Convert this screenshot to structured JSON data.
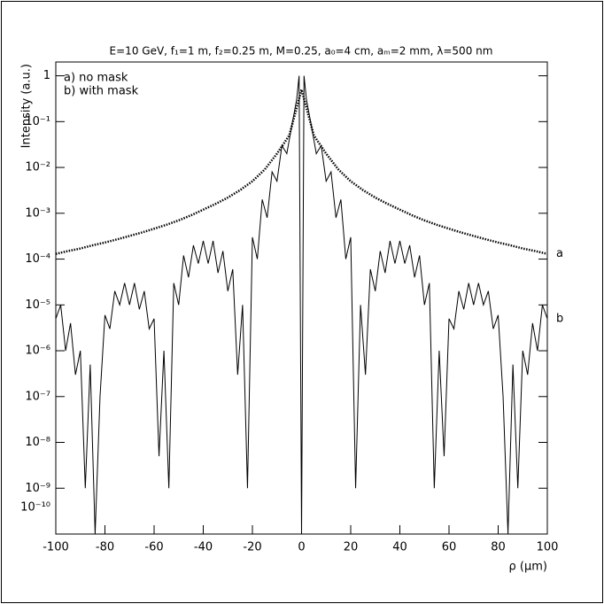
{
  "chart_data": {
    "type": "line",
    "title": "E=10 GeV, f₁=1 m, f₂=0.25 m, M=0.25, a₀=4 cm, aₘ=2 mm, λ=500 nm",
    "x_label": "ρ (μm)",
    "y_label": "Intensity (a.u.)",
    "y_scale": "log",
    "xlim": [
      -100,
      100
    ],
    "xticks": [
      -100,
      -80,
      -60,
      -40,
      -20,
      0,
      20,
      40,
      60,
      80,
      100
    ],
    "ylim": [
      1e-10,
      2
    ],
    "yticks": [
      1,
      {
        "value": 0.1,
        "label": "10⁻¹"
      },
      {
        "value": 0.01,
        "label": "10⁻²"
      },
      {
        "value": 0.001,
        "label": "10⁻³"
      },
      {
        "value": 0.0001,
        "label": "10⁻⁴"
      },
      {
        "value": 1e-05,
        "label": "10⁻⁵"
      },
      {
        "value": 1e-06,
        "label": "10⁻⁶"
      },
      {
        "value": 1e-07,
        "label": "10⁻⁷"
      },
      {
        "value": 1e-08,
        "label": "10⁻⁸"
      },
      {
        "value": 1e-09,
        "label": "10⁻⁹"
      },
      {
        "value": 1e-10,
        "label": "10⁻¹⁰"
      }
    ],
    "series": [
      {
        "name": "a) no mask",
        "label": "a",
        "color": "#000000",
        "style": "dotted",
        "x": [
          -100,
          -95,
          -90,
          -85,
          -80,
          -75,
          -70,
          -65,
          -60,
          -55,
          -50,
          -45,
          -40,
          -35,
          -30,
          -25,
          -20,
          -15,
          -10,
          -5,
          0,
          5,
          10,
          15,
          20,
          25,
          30,
          35,
          40,
          45,
          50,
          55,
          60,
          65,
          70,
          75,
          80,
          85,
          90,
          95,
          100
        ],
        "values": [
          0.00013,
          0.00015,
          0.00017,
          0.0002,
          0.00023,
          0.00027,
          0.00032,
          0.00038,
          0.00046,
          0.00056,
          0.0007,
          0.0009,
          0.0012,
          0.0016,
          0.0022,
          0.0032,
          0.005,
          0.009,
          0.02,
          0.05,
          0.5,
          0.05,
          0.02,
          0.009,
          0.005,
          0.0032,
          0.0022,
          0.0016,
          0.0012,
          0.0009,
          0.0007,
          0.00056,
          0.00046,
          0.00038,
          0.00032,
          0.00027,
          0.00023,
          0.0002,
          0.00017,
          0.00015,
          0.00013
        ]
      },
      {
        "name": "b) with mask",
        "label": "b",
        "color": "#000000",
        "style": "solid",
        "x": [
          -100,
          -98,
          -96,
          -94,
          -92,
          -90,
          -88,
          -86,
          -84,
          -82,
          -80,
          -78,
          -76,
          -74,
          -72,
          -70,
          -68,
          -66,
          -64,
          -62,
          -60,
          -58,
          -56,
          -54,
          -52,
          -50,
          -48,
          -46,
          -44,
          -42,
          -40,
          -38,
          -36,
          -34,
          -32,
          -30,
          -28,
          -26,
          -24,
          -22,
          -20,
          -18,
          -16,
          -14,
          -12,
          -10,
          -8,
          -6,
          -4,
          -2,
          -1,
          0,
          1,
          2,
          4,
          6,
          8,
          10,
          12,
          14,
          16,
          18,
          20,
          22,
          24,
          26,
          28,
          30,
          32,
          34,
          36,
          38,
          40,
          42,
          44,
          46,
          48,
          50,
          52,
          54,
          56,
          58,
          60,
          62,
          64,
          66,
          68,
          70,
          72,
          74,
          76,
          78,
          80,
          82,
          84,
          86,
          88,
          90,
          92,
          94,
          96,
          98,
          100
        ],
        "values": [
          5e-06,
          1e-05,
          1e-06,
          4e-06,
          3e-07,
          1e-06,
          1e-09,
          5e-07,
          1e-10,
          1e-07,
          6e-06,
          3e-06,
          2e-05,
          1e-05,
          3e-05,
          1e-05,
          3e-05,
          8e-06,
          2e-05,
          3e-06,
          5e-06,
          5e-09,
          1e-06,
          1e-09,
          3e-05,
          1e-05,
          0.00012,
          4e-05,
          0.0002,
          8e-05,
          0.00025,
          8e-05,
          0.00025,
          5e-05,
          0.00015,
          2e-05,
          6e-05,
          3e-07,
          1e-05,
          1e-09,
          0.0003,
          0.0001,
          0.002,
          0.0008,
          0.008,
          0.005,
          0.03,
          0.02,
          0.08,
          0.3,
          1,
          1e-10,
          1,
          0.3,
          0.08,
          0.02,
          0.03,
          0.005,
          0.008,
          0.0008,
          0.002,
          0.0001,
          0.0003,
          1e-09,
          1e-05,
          3e-07,
          6e-05,
          2e-05,
          0.00015,
          5e-05,
          0.00025,
          8e-05,
          0.00025,
          8e-05,
          0.0002,
          4e-05,
          0.00012,
          1e-05,
          3e-05,
          1e-09,
          1e-06,
          5e-09,
          5e-06,
          3e-06,
          2e-05,
          8e-06,
          3e-05,
          1e-05,
          3e-05,
          1e-05,
          2e-05,
          3e-06,
          6e-06,
          1e-07,
          1e-10,
          5e-07,
          1e-09,
          1e-06,
          3e-07,
          4e-06,
          1e-06,
          1e-05,
          5e-06
        ]
      }
    ]
  }
}
